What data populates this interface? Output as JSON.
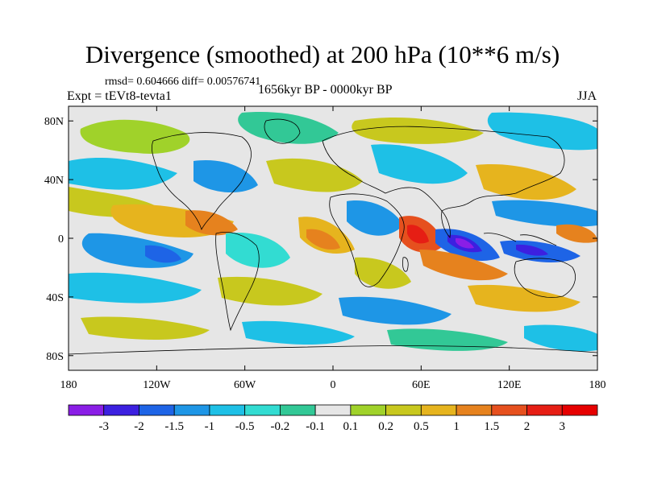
{
  "map": {
    "title": "Divergence (smoothed) at 200 hPa (10**6 m/s)",
    "stats": "rmsd= 0.604666 diff= 0.00576741",
    "experiment": "Expt = tEVt8-tevta1",
    "period": "1656kyr BP - 0000kyr BP",
    "season": "JJA",
    "lat_ticks": [
      "80N",
      "40N",
      "0",
      "40S",
      "80S"
    ],
    "lon_ticks": [
      "180",
      "120W",
      "60W",
      "0",
      "60E",
      "120E",
      "180"
    ],
    "colorbar": {
      "labels": [
        "-3",
        "-2",
        "-1.5",
        "-1",
        "-0.5",
        "-0.2",
        "-0.1",
        "0.1",
        "0.2",
        "0.5",
        "1",
        "1.5",
        "2",
        "3"
      ],
      "colors": [
        "#8a1ee6",
        "#3c20e0",
        "#1e64e6",
        "#1e96e6",
        "#1ec0e6",
        "#32dcd2",
        "#32c896",
        "#e6e6e6",
        "#a0d22a",
        "#c8c81e",
        "#e6b41e",
        "#e6821e",
        "#e6501e",
        "#e61e14",
        "#e60000"
      ]
    },
    "background_color": "#e6e6e6"
  }
}
